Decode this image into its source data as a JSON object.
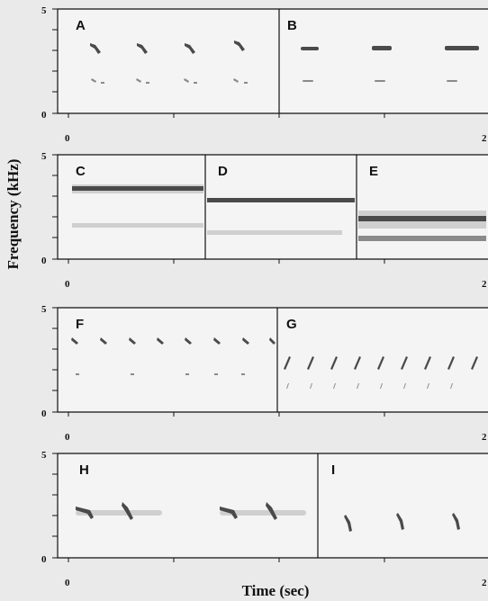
{
  "figure": {
    "ylabel": "Frequency (kHz)",
    "xlabel": "Time (sec)",
    "y_ticks": {
      "top": "5",
      "bottom": "0"
    },
    "x_ticks": {
      "left": "0",
      "right": "2"
    }
  },
  "rows": [
    {
      "panels": [
        "A",
        "B"
      ]
    },
    {
      "panels": [
        "C",
        "D",
        "E"
      ]
    },
    {
      "panels": [
        "F",
        "G"
      ]
    },
    {
      "panels": [
        "H",
        "I"
      ]
    }
  ]
}
